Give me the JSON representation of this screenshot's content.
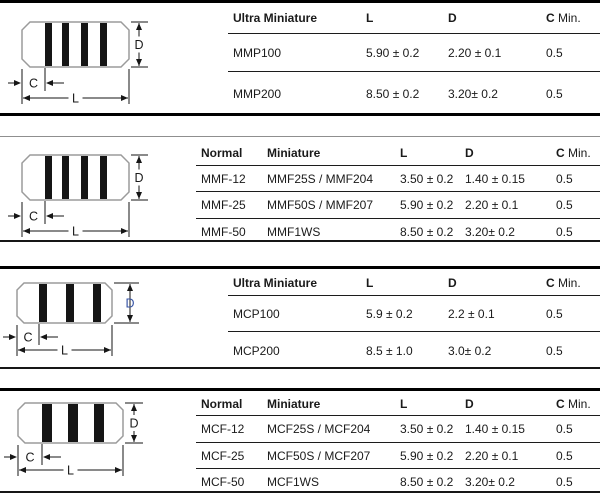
{
  "colors": {
    "body_outline": "#9b9b9b",
    "band": "#151515",
    "dimension_line": "#161616",
    "blue_d_label": "#3653a4",
    "text": "#1a1a1a"
  },
  "sections": [
    {
      "id": "mmp-ultra-miniature",
      "diagram": {
        "bands": 4,
        "variant": "big",
        "d_label": "D",
        "c_label": "C",
        "l_label": "L",
        "d_style": "boxed"
      },
      "table": {
        "headers": [
          {
            "text": "Ultra Miniature",
            "bold": true
          },
          {
            "text": "L",
            "bold": true
          },
          {
            "text": "D",
            "bold": true
          },
          {
            "text": "C",
            "bold": true,
            "suffix": " Min."
          }
        ],
        "rows": [
          [
            "MMP100",
            "5.90 ± 0.2",
            "2.20 ± 0.1",
            "0.5"
          ],
          [
            "MMP200",
            "8.50 ± 0.2",
            "3.20± 0.2",
            "0.5"
          ]
        ]
      }
    },
    {
      "id": "mmf-normal-miniature",
      "diagram": {
        "bands": 4,
        "variant": "big",
        "d_label": "D",
        "c_label": "C",
        "l_label": "L",
        "d_style": "boxed"
      },
      "table": {
        "headers": [
          {
            "text": "Normal",
            "bold": true
          },
          {
            "text": "Miniature",
            "bold": true
          },
          {
            "text": "L",
            "bold": true
          },
          {
            "text": "D",
            "bold": true
          },
          {
            "text": "C",
            "bold": true,
            "suffix": " Min."
          }
        ],
        "rows": [
          [
            "MMF-12",
            "MMF25S / MMF204",
            "3.50 ± 0.2",
            "1.40 ± 0.15",
            "0.5"
          ],
          [
            "MMF-25",
            "MMF50S / MMF207",
            "5.90 ± 0.2",
            "2.20 ± 0.1",
            "0.5"
          ],
          [
            "MMF-50",
            "MMF1WS",
            "8.50 ± 0.2",
            "3.20± 0.2",
            "0.5"
          ]
        ]
      }
    },
    {
      "id": "mcp-ultra-miniature",
      "diagram": {
        "bands": 3,
        "variant": "small3",
        "d_label": "D",
        "c_label": "C",
        "l_label": "L",
        "d_style": "overlap-blue"
      },
      "table": {
        "headers": [
          {
            "text": "Ultra Miniature",
            "bold": true
          },
          {
            "text": "L",
            "bold": true
          },
          {
            "text": "D",
            "bold": true
          },
          {
            "text": "C",
            "bold": true,
            "suffix": " Min."
          }
        ],
        "rows": [
          [
            "MCP100",
            "5.9 ± 0.2",
            "2.2 ± 0.1",
            "0.5"
          ],
          [
            "MCP200",
            "8.5 ± 1.0",
            "3.0± 0.2",
            "0.5"
          ]
        ]
      }
    },
    {
      "id": "mcf-normal-miniature",
      "diagram": {
        "bands": 3,
        "variant": "small4",
        "d_label": "D",
        "c_label": "C",
        "l_label": "L",
        "d_style": "boxed"
      },
      "table": {
        "headers": [
          {
            "text": "Normal",
            "bold": true
          },
          {
            "text": "Miniature",
            "bold": true
          },
          {
            "text": "L",
            "bold": true
          },
          {
            "text": "D",
            "bold": true
          },
          {
            "text": "C",
            "bold": true,
            "suffix": " Min."
          }
        ],
        "rows": [
          [
            "MCF-12",
            "MCF25S / MCF204",
            "3.50 ± 0.2",
            "1.40 ± 0.15",
            "0.5"
          ],
          [
            "MCF-25",
            "MCF50S / MCF207",
            "5.90 ± 0.2",
            "2.20 ± 0.1",
            "0.5"
          ],
          [
            "MCF-50",
            "MCF1WS",
            "8.50 ± 0.2",
            "3.20± 0.2",
            "0.5"
          ]
        ]
      }
    }
  ]
}
